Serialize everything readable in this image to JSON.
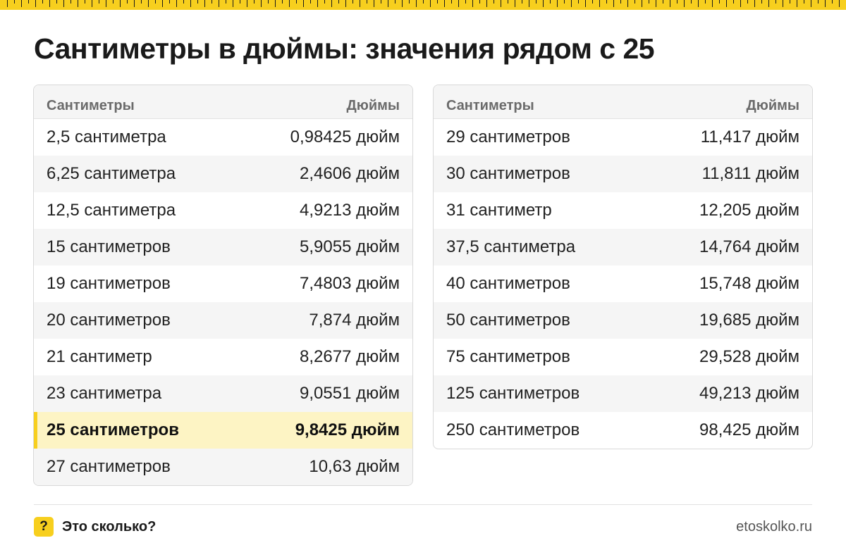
{
  "header": {
    "title": "Сантиметры в дюймы: значения рядом с 25"
  },
  "colors": {
    "accent": "#f7cf1e",
    "highlight_row": "#fdf4c4",
    "stripe": "#f5f5f5",
    "border": "#d9d9d9"
  },
  "tables": {
    "left": {
      "col_cm": "Сантиметры",
      "col_in": "Дюймы",
      "rows": [
        {
          "cm": "2,5 сантиметра",
          "in": "0,98425 дюйм"
        },
        {
          "cm": "6,25 сантиметра",
          "in": "2,4606 дюйм"
        },
        {
          "cm": "12,5 сантиметра",
          "in": "4,9213 дюйм"
        },
        {
          "cm": "15 сантиметров",
          "in": "5,9055 дюйм"
        },
        {
          "cm": "19 сантиметров",
          "in": "7,4803 дюйм"
        },
        {
          "cm": "20 сантиметров",
          "in": "7,874 дюйм"
        },
        {
          "cm": "21 сантиметр",
          "in": "8,2677 дюйм"
        },
        {
          "cm": "23 сантиметра",
          "in": "9,0551 дюйм"
        },
        {
          "cm": "25 сантиметров",
          "in": "9,8425 дюйм"
        },
        {
          "cm": "27 сантиметров",
          "in": "10,63 дюйм"
        }
      ]
    },
    "right": {
      "col_cm": "Сантиметры",
      "col_in": "Дюймы",
      "rows": [
        {
          "cm": "29 сантиметров",
          "in": "11,417 дюйм"
        },
        {
          "cm": "30 сантиметров",
          "in": "11,811 дюйм"
        },
        {
          "cm": "31 сантиметр",
          "in": "12,205 дюйм"
        },
        {
          "cm": "37,5 сантиметра",
          "in": "14,764 дюйм"
        },
        {
          "cm": "40 сантиметров",
          "in": "15,748 дюйм"
        },
        {
          "cm": "50 сантиметров",
          "in": "19,685 дюйм"
        },
        {
          "cm": "75 сантиметров",
          "in": "29,528 дюйм"
        },
        {
          "cm": "125 сантиметров",
          "in": "49,213 дюйм"
        },
        {
          "cm": "250 сантиметров",
          "in": "98,425 дюйм"
        }
      ]
    }
  },
  "footer": {
    "badge_icon": "question-mark-icon",
    "badge_glyph": "?",
    "brand": "Это сколько?",
    "site": "etoskolko.ru"
  }
}
